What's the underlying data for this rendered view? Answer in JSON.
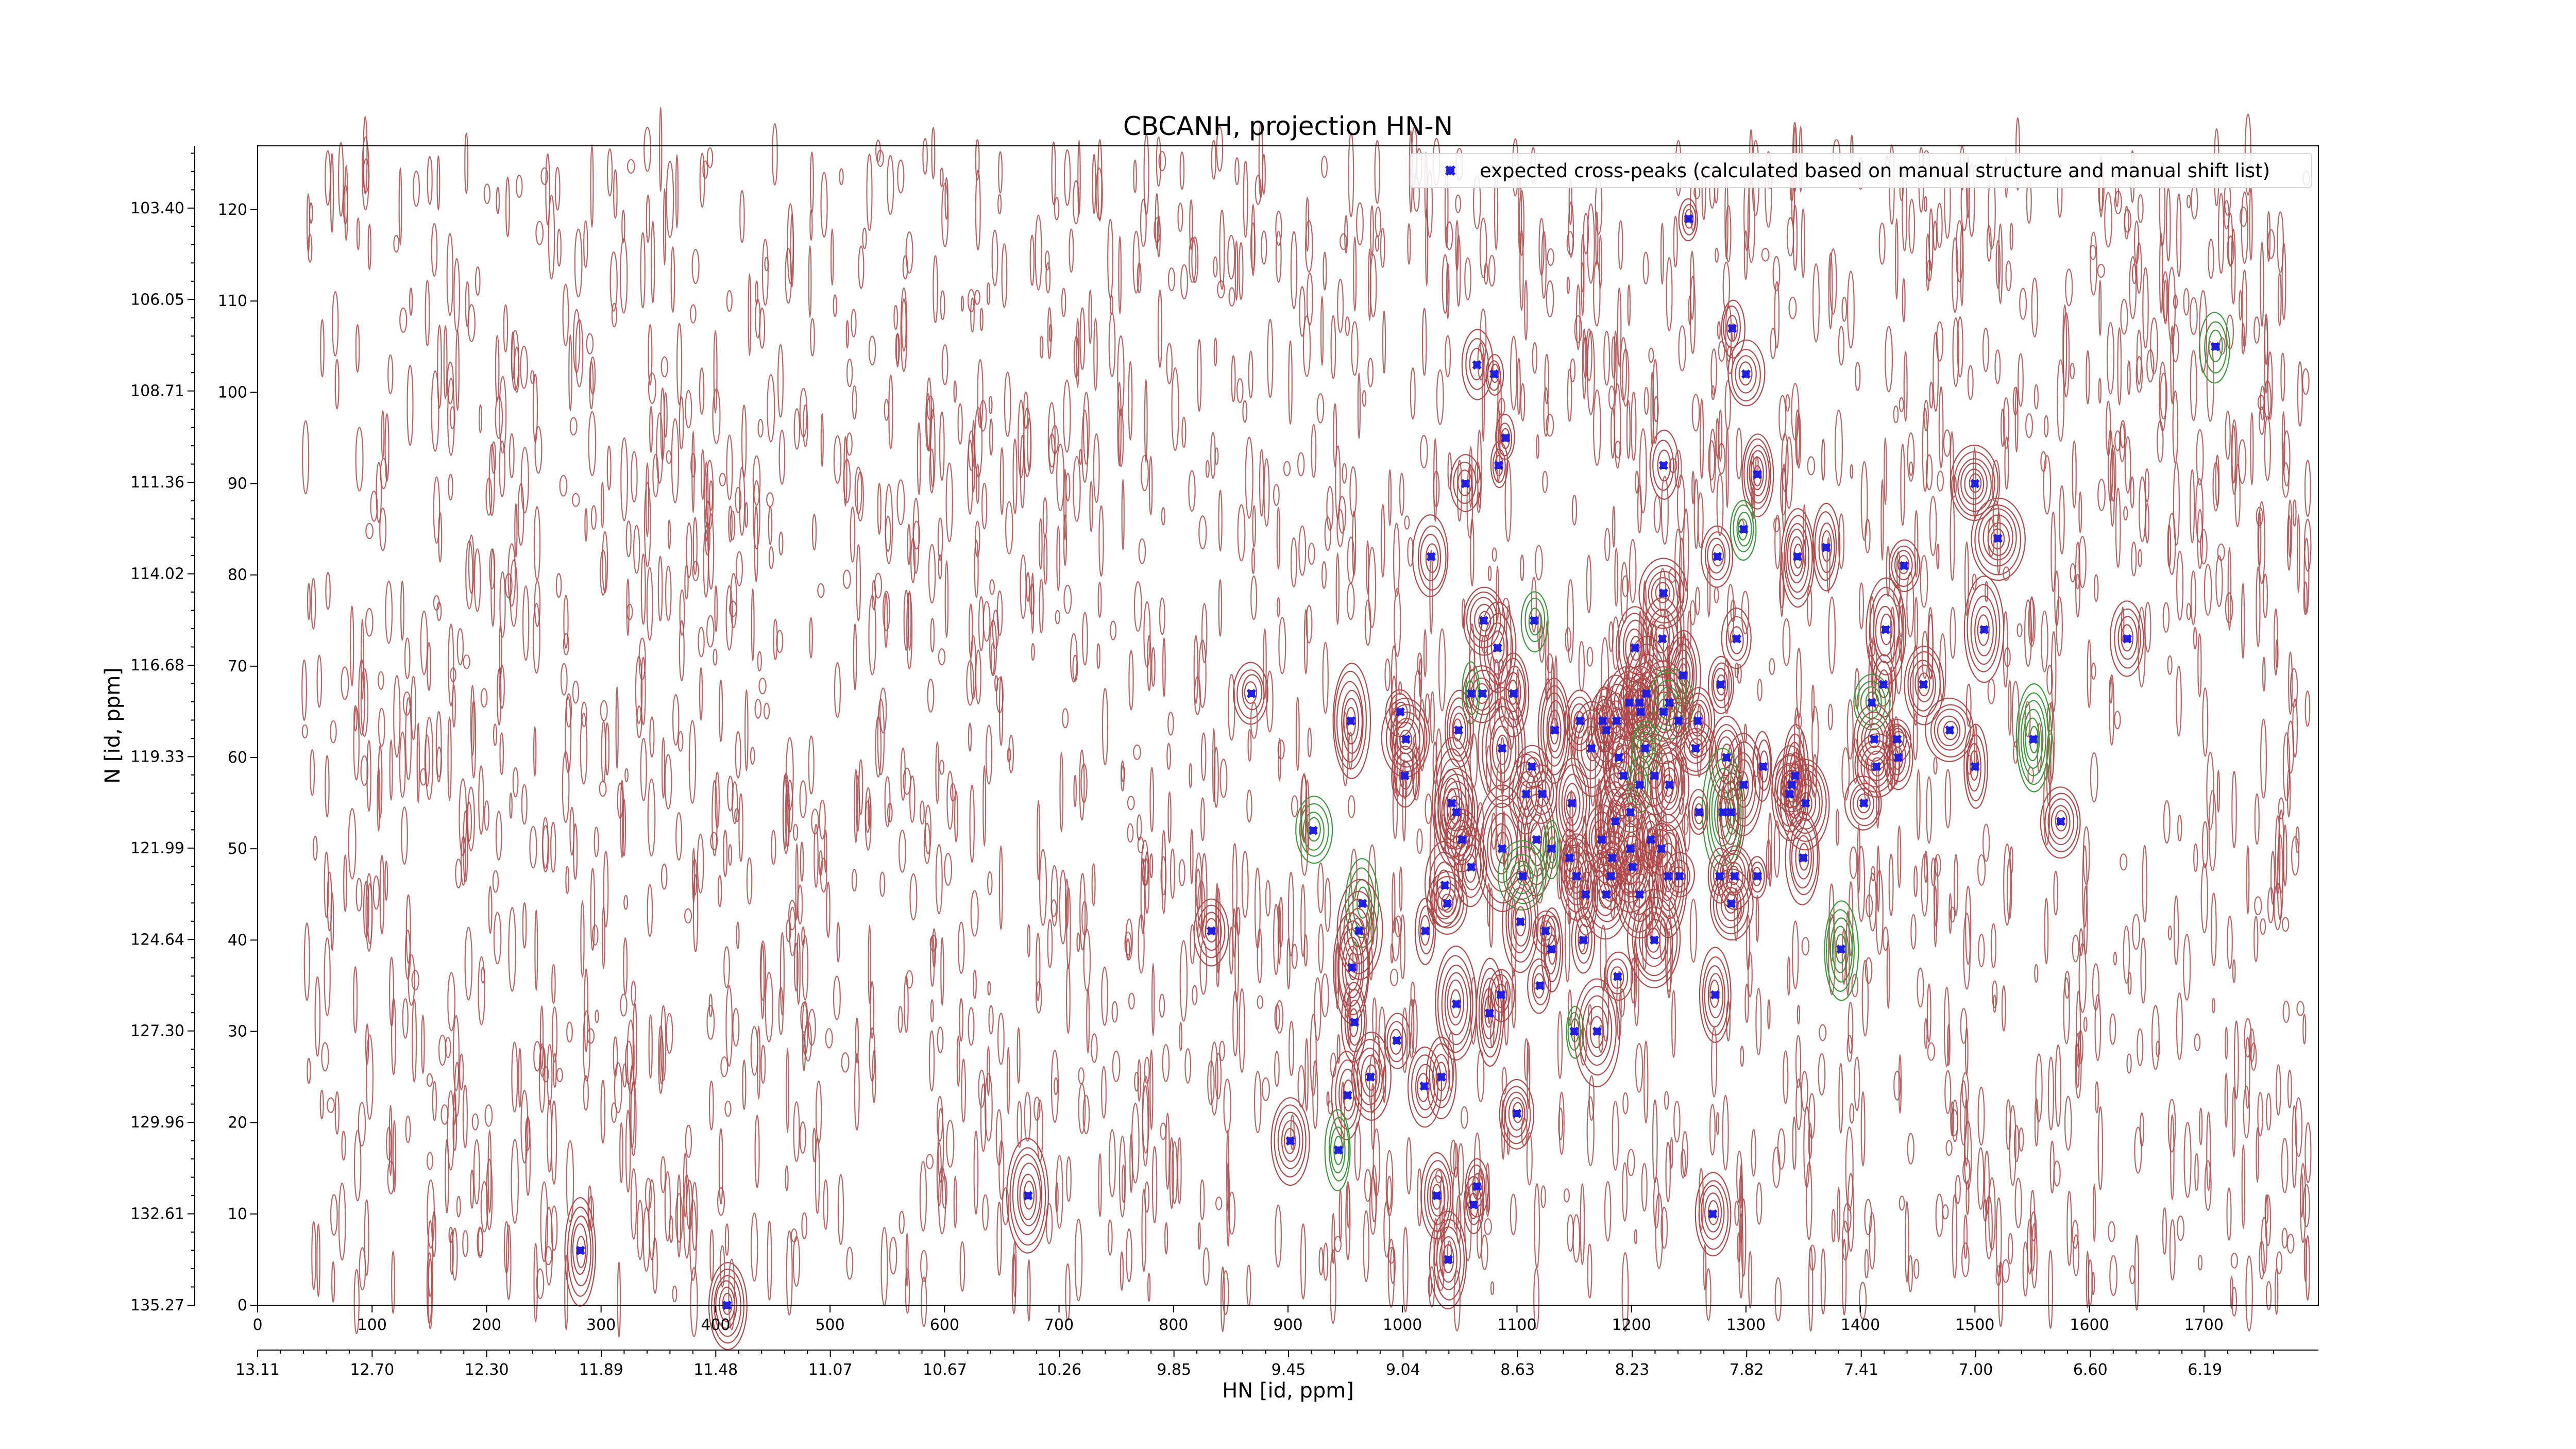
{
  "chart_data": {
    "type": "scatter",
    "title": "CBCANH, projection HN-N",
    "xlabel": "HN [id, ppm]",
    "ylabel": "N [id, ppm]",
    "x_index_ticks": [
      "0",
      "100",
      "200",
      "300",
      "400",
      "500",
      "600",
      "700",
      "800",
      "900",
      "1000",
      "1100",
      "1200",
      "1300",
      "1400",
      "1500",
      "1600",
      "1700"
    ],
    "x_ppm_ticks": [
      "13.11",
      "12.70",
      "12.30",
      "11.89",
      "11.48",
      "11.07",
      "10.67",
      "10.26",
      "9.85",
      "9.45",
      "9.04",
      "8.63",
      "8.23",
      "7.82",
      "7.41",
      "7.00",
      "6.60",
      "6.19"
    ],
    "y_index_ticks": [
      "0",
      "10",
      "20",
      "30",
      "40",
      "50",
      "60",
      "70",
      "80",
      "90",
      "100",
      "110",
      "120"
    ],
    "y_ppm_ticks": [
      "135.27",
      "132.61",
      "129.96",
      "127.30",
      "124.64",
      "121.99",
      "119.33",
      "116.68",
      "114.02",
      "111.36",
      "108.71",
      "106.05",
      "103.40"
    ],
    "xlim": [
      0,
      1800
    ],
    "ylim": [
      0,
      127
    ],
    "grid": false,
    "legend_position": "top-right",
    "colors": {
      "expected": "#1f1fe6",
      "contour_positive": "#b04a4a",
      "contour_negative": "#3a9a3a"
    },
    "series": [
      {
        "name": "expected cross-peaks (calculated based on manual structure and manual shift list)",
        "marker": "x",
        "points": [
          [
            1250,
            119
          ],
          [
            1288,
            107
          ],
          [
            1300,
            102
          ],
          [
            1710,
            105
          ],
          [
            1065,
            103
          ],
          [
            1080,
            102
          ],
          [
            1090,
            95
          ],
          [
            1084,
            92
          ],
          [
            1055,
            90
          ],
          [
            1228,
            92
          ],
          [
            1310,
            91
          ],
          [
            1500,
            90
          ],
          [
            1298,
            85
          ],
          [
            1520,
            84
          ],
          [
            1025,
            82
          ],
          [
            1370,
            83
          ],
          [
            1345,
            82
          ],
          [
            1438,
            81
          ],
          [
            1275,
            82
          ],
          [
            1228,
            78
          ],
          [
            1071,
            75
          ],
          [
            1115,
            75
          ],
          [
            1422,
            74
          ],
          [
            1508,
            74
          ],
          [
            1633,
            73
          ],
          [
            1292,
            73
          ],
          [
            1083,
            72
          ],
          [
            1203,
            72
          ],
          [
            1227,
            73
          ],
          [
            1245,
            69
          ],
          [
            1060,
            67
          ],
          [
            1070,
            67
          ],
          [
            1097,
            67
          ],
          [
            1278,
            68
          ],
          [
            1420,
            68
          ],
          [
            1455,
            68
          ],
          [
            1213,
            67
          ],
          [
            1207,
            66
          ],
          [
            868,
            67
          ],
          [
            1233,
            66
          ],
          [
            1208,
            65
          ],
          [
            1198,
            66
          ],
          [
            1175,
            64
          ],
          [
            1155,
            64
          ],
          [
            1187,
            64
          ],
          [
            1228,
            65
          ],
          [
            1241,
            64
          ],
          [
            1258,
            64
          ],
          [
            1410,
            66
          ],
          [
            955,
            64
          ],
          [
            998,
            65
          ],
          [
            1049,
            63
          ],
          [
            1133,
            63
          ],
          [
            1178,
            63
          ],
          [
            1412,
            62
          ],
          [
            1432,
            62
          ],
          [
            1478,
            63
          ],
          [
            1551,
            62
          ],
          [
            1003,
            62
          ],
          [
            1414,
            59
          ],
          [
            1433,
            60
          ],
          [
            1500,
            59
          ],
          [
            1113,
            59
          ],
          [
            1087,
            61
          ],
          [
            1165,
            61
          ],
          [
            1189,
            60
          ],
          [
            1212,
            61
          ],
          [
            1256,
            61
          ],
          [
            1283,
            60
          ],
          [
            1315,
            59
          ],
          [
            1343,
            58
          ],
          [
            1002,
            58
          ],
          [
            1108,
            56
          ],
          [
            1122,
            56
          ],
          [
            1193,
            58
          ],
          [
            1207,
            57
          ],
          [
            1220,
            58
          ],
          [
            1233,
            57
          ],
          [
            1298,
            57
          ],
          [
            1338,
            56
          ],
          [
            1340,
            57
          ],
          [
            1043,
            55
          ],
          [
            1148,
            55
          ],
          [
            1047,
            54
          ],
          [
            1280,
            54
          ],
          [
            1186,
            53
          ],
          [
            1199,
            54
          ],
          [
            1259,
            54
          ],
          [
            1287,
            54
          ],
          [
            1352,
            55
          ],
          [
            1403,
            55
          ],
          [
            1052,
            51
          ],
          [
            1575,
            53
          ],
          [
            922,
            52
          ],
          [
            1117,
            51
          ],
          [
            1174,
            51
          ],
          [
            1199,
            50
          ],
          [
            1217,
            51
          ],
          [
            1226,
            50
          ],
          [
            1350,
            49
          ],
          [
            1087,
            50
          ],
          [
            1060,
            48
          ],
          [
            1130,
            50
          ],
          [
            1146,
            49
          ],
          [
            1183,
            49
          ],
          [
            1201,
            48
          ],
          [
            1232,
            47
          ],
          [
            1242,
            47
          ],
          [
            1277,
            47
          ],
          [
            1290,
            47
          ],
          [
            1310,
            47
          ],
          [
            1105,
            47
          ],
          [
            1037,
            46
          ],
          [
            1152,
            47
          ],
          [
            1178,
            45
          ],
          [
            1182,
            47
          ],
          [
            1207,
            45
          ],
          [
            1039,
            44
          ],
          [
            1160,
            45
          ],
          [
            1287,
            44
          ],
          [
            965,
            44
          ],
          [
            962,
            41
          ],
          [
            1020,
            41
          ],
          [
            1103,
            42
          ],
          [
            1125,
            41
          ],
          [
            833,
            41
          ],
          [
            1130,
            39
          ],
          [
            1158,
            40
          ],
          [
            1220,
            40
          ],
          [
            1383,
            39
          ],
          [
            956,
            37
          ],
          [
            1188,
            36
          ],
          [
            1120,
            35
          ],
          [
            1047,
            33
          ],
          [
            1086,
            34
          ],
          [
            1076,
            32
          ],
          [
            1273,
            34
          ],
          [
            958,
            31
          ],
          [
            1150,
            30
          ],
          [
            1170,
            30
          ],
          [
            995,
            29
          ],
          [
            972,
            25
          ],
          [
            1034,
            25
          ],
          [
            1019,
            24
          ],
          [
            952,
            23
          ],
          [
            1100,
            21
          ],
          [
            902,
            18
          ],
          [
            944,
            17
          ],
          [
            1030,
            12
          ],
          [
            1065,
            13
          ],
          [
            1062,
            11
          ],
          [
            1271,
            10
          ],
          [
            673,
            12
          ],
          [
            282,
            6
          ],
          [
            1040,
            5
          ],
          [
            410,
            0
          ]
        ]
      }
    ]
  }
}
